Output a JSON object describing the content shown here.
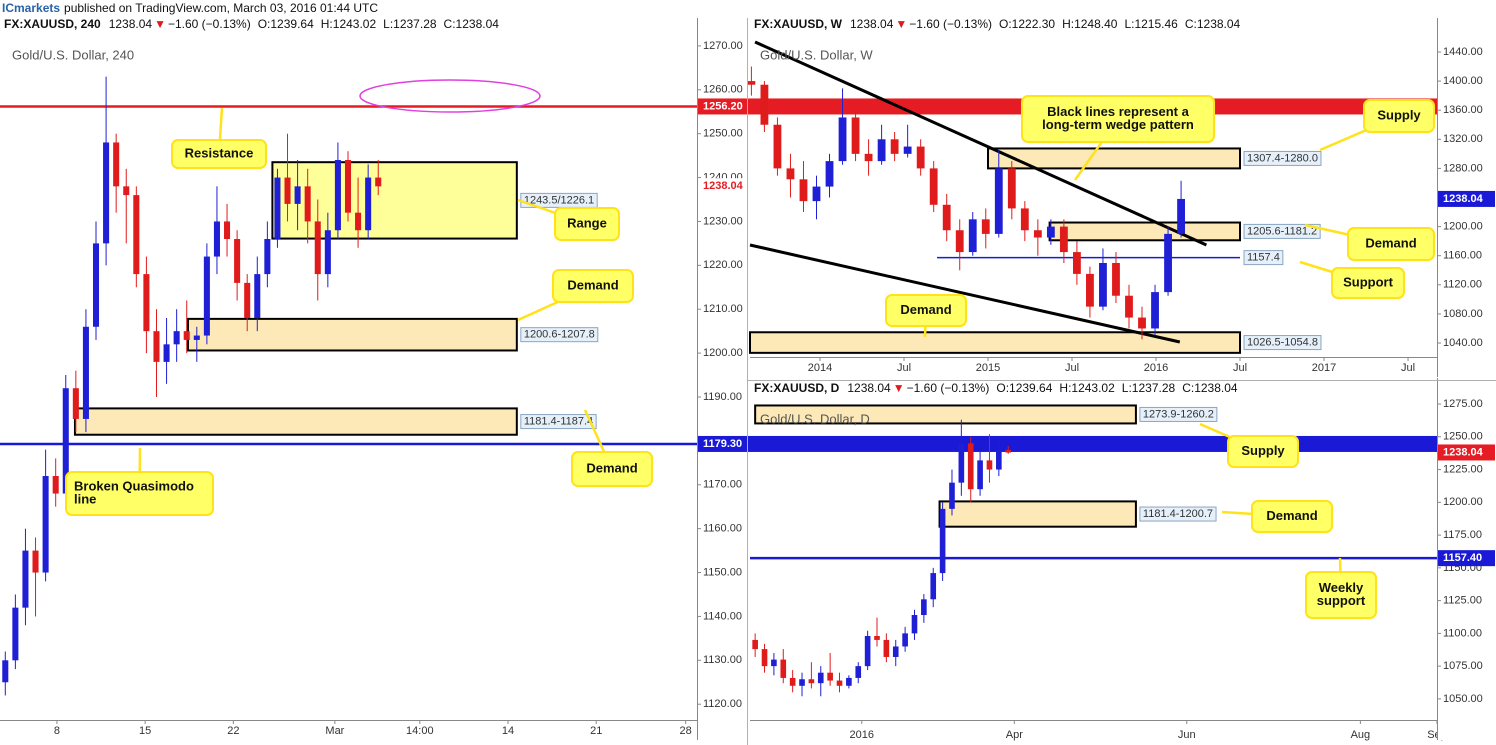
{
  "header": {
    "brand": "ICmarkets",
    "text": "published on TradingView.com, March 03, 2016 01:44 UTC"
  },
  "chart_data": [
    {
      "type": "candlestick",
      "symbol": "FX:XAUUSD, 240",
      "last": "1238.04",
      "change_arrow": "▼",
      "change": "−1.60 (−0.13%)",
      "ohlc": [
        "O:1239.64",
        "H:1243.02",
        "L:1237.28",
        "C:1238.04"
      ],
      "title": "Gold/U.S. Dollar, 240",
      "up_color": "#1f1fd6",
      "down_color": "#e01b1b",
      "xlim": [
        3.48,
        58.8
      ],
      "ylim": [
        1116.4,
        1271.8
      ],
      "xticks": [
        8,
        15,
        22,
        {
          "value": 30.06,
          "label": "Mar"
        },
        {
          "value": 36.8,
          "label": "14:00"
        },
        {
          "value": 43.8,
          "label": "14"
        },
        {
          "value": 50.8,
          "label": "21"
        },
        {
          "value": 57.9,
          "label": "28"
        }
      ],
      "yticks": [
        {
          "value": 1120,
          "label": "1120.00"
        },
        {
          "value": 1130,
          "label": "1130.00"
        },
        {
          "value": 1140,
          "label": "1140.00"
        },
        {
          "value": 1150,
          "label": "1150.00"
        },
        {
          "value": 1160,
          "label": "1160.00"
        },
        {
          "value": 1170,
          "label": "1170.00"
        },
        {
          "value": 1180,
          "label": "1180.00"
        },
        {
          "value": 1190,
          "label": "1190.00"
        },
        {
          "value": 1200,
          "label": "1200.00"
        },
        {
          "value": 1210,
          "label": "1210.00"
        },
        {
          "value": 1220,
          "label": "1220.00"
        },
        {
          "value": 1230,
          "label": "1230.00"
        },
        {
          "value": 1240,
          "label": "1240.00"
        },
        {
          "value": 1250,
          "label": "1250.00"
        },
        {
          "value": 1260,
          "label": "1260.00"
        },
        {
          "value": 1270,
          "label": "1270.00"
        }
      ],
      "x": [
        3.9,
        4.7,
        5.5,
        6.3,
        7.1,
        7.9,
        8.7,
        9.5,
        10.3,
        11.1,
        11.9,
        12.7,
        13.5,
        14.3,
        15.1,
        15.9,
        16.7,
        17.5,
        18.3,
        19.1,
        19.9,
        20.7,
        21.5,
        22.3,
        23.1,
        23.9,
        24.7,
        25.5,
        26.3,
        27.1,
        27.9,
        28.7,
        29.5,
        30.3,
        31.1,
        31.9,
        32.7,
        33.5
      ],
      "open": [
        1125,
        1130,
        1142,
        1155,
        1150,
        1172,
        1168,
        1192,
        1185,
        1206,
        1225,
        1248,
        1238,
        1236,
        1218,
        1205,
        1198,
        1202,
        1205,
        1203,
        1204,
        1222,
        1230,
        1226,
        1216,
        1208,
        1218,
        1226,
        1240,
        1234,
        1238,
        1230,
        1218,
        1228,
        1244,
        1232,
        1228,
        1240
      ],
      "high": [
        1132,
        1145,
        1160,
        1158,
        1178,
        1176,
        1195,
        1196,
        1210,
        1230,
        1263,
        1250,
        1242,
        1238,
        1222,
        1210,
        1208,
        1210,
        1212,
        1206,
        1225,
        1238,
        1234,
        1228,
        1218,
        1222,
        1230,
        1242,
        1250,
        1244,
        1242,
        1235,
        1232,
        1248,
        1246,
        1240,
        1243,
        1244
      ],
      "low": [
        1122,
        1128,
        1138,
        1140,
        1148,
        1165,
        1165,
        1182,
        1182,
        1203,
        1220,
        1232,
        1225,
        1215,
        1200,
        1190,
        1193,
        1198,
        1200,
        1198,
        1202,
        1218,
        1222,
        1212,
        1205,
        1205,
        1215,
        1224,
        1230,
        1228,
        1225,
        1212,
        1215,
        1226,
        1230,
        1224,
        1226,
        1236
      ],
      "close": [
        1130,
        1142,
        1155,
        1150,
        1172,
        1168,
        1192,
        1185,
        1206,
        1225,
        1248,
        1238,
        1236,
        1218,
        1205,
        1198,
        1202,
        1205,
        1203,
        1204,
        1222,
        1230,
        1226,
        1216,
        1208,
        1218,
        1226,
        1240,
        1234,
        1238,
        1230,
        1218,
        1228,
        1244,
        1232,
        1228,
        1240,
        1238
      ],
      "zones": [
        {
          "label": "1243.5/1226.1",
          "high": 1243.5,
          "low": 1226.1,
          "x0": 25.1,
          "x1": 44.5,
          "fill": "#ffff99"
        },
        {
          "label": "1200.6-1207.8",
          "low": 1200.6,
          "high": 1207.8,
          "x0": 18.4,
          "x1": 44.5,
          "fill": "#fde9b8"
        },
        {
          "label": "1181.4-1187.4",
          "low": 1181.4,
          "high": 1187.4,
          "x0": 9.43,
          "x1": 44.5,
          "fill": "#fde9b8"
        }
      ],
      "levels": [
        {
          "value": 1256.2,
          "label": "1256.20",
          "color": "#e51c23",
          "line": true,
          "flag": "filled"
        },
        {
          "value": 1238.04,
          "color": "#e51c23",
          "flag": "text"
        },
        {
          "value": 1179.3,
          "label": "1179.30",
          "color": "#1a1ad6",
          "line": true,
          "flag": "filled"
        }
      ],
      "callouts": [
        [
          "Resistance"
        ],
        [
          "Range"
        ],
        [
          "Demand"
        ],
        [
          "Broken Quasimodo",
          "line"
        ],
        [
          "Demand"
        ]
      ]
    },
    {
      "type": "candlestick",
      "symbol": "FX:XAUUSD, W",
      "last": "1238.04",
      "change_arrow": "▼",
      "change": "−1.60 (−0.13%)",
      "ohlc": [
        "O:1222.30",
        "H:1248.40",
        "L:1215.46",
        "C:1238.04"
      ],
      "title": "Gold/U.S. Dollar, W",
      "up_color": "#1f1fd6",
      "down_color": "#e01b1b",
      "xlim": [
        7,
        56.07
      ],
      "ylim": [
        1020.8,
        1459.2
      ],
      "xticks": [
        {
          "value": 12,
          "label": "2014"
        },
        {
          "value": 18,
          "label": "Jul"
        },
        {
          "value": 24,
          "label": "2015"
        },
        {
          "value": 30,
          "label": "Jul"
        },
        {
          "value": 36,
          "label": "2016"
        },
        {
          "value": 42,
          "label": "Jul"
        },
        {
          "value": 48,
          "label": "2017"
        },
        {
          "value": 54,
          "label": "Jul"
        }
      ],
      "yticks": [
        {
          "value": 1040,
          "label": "1040.00"
        },
        {
          "value": 1080,
          "label": "1080.00"
        },
        {
          "value": 1120,
          "label": "1120.00"
        },
        {
          "value": 1160,
          "label": "1160.00"
        },
        {
          "value": 1200,
          "label": "1200.00"
        },
        {
          "value": 1240,
          "label": "1240.00"
        },
        {
          "value": 1280,
          "label": "1280.00"
        },
        {
          "value": 1320,
          "label": "1320.00"
        },
        {
          "value": 1360,
          "label": "1360.00"
        },
        {
          "value": 1400,
          "label": "1400.00"
        },
        {
          "value": 1440,
          "label": "1440.00"
        }
      ],
      "x": [
        7.1,
        8.03,
        8.96,
        9.89,
        10.82,
        11.75,
        12.68,
        13.61,
        14.54,
        15.47,
        16.4,
        17.33,
        18.26,
        19.19,
        20.12,
        21.05,
        21.98,
        22.91,
        23.84,
        24.77,
        25.7,
        26.63,
        27.56,
        28.49,
        29.42,
        30.35,
        31.28,
        32.21,
        33.14,
        34.07,
        35.0,
        35.93,
        36.86,
        37.79
      ],
      "open": [
        1400,
        1395,
        1340,
        1280,
        1265,
        1235,
        1255,
        1290,
        1350,
        1300,
        1290,
        1320,
        1300,
        1310,
        1280,
        1230,
        1195,
        1165,
        1210,
        1190,
        1280,
        1225,
        1195,
        1185,
        1200,
        1165,
        1135,
        1090,
        1150,
        1105,
        1075,
        1060,
        1110,
        1190
      ],
      "high": [
        1420,
        1400,
        1350,
        1300,
        1290,
        1270,
        1300,
        1390,
        1360,
        1320,
        1340,
        1330,
        1340,
        1320,
        1290,
        1245,
        1210,
        1220,
        1225,
        1305,
        1290,
        1235,
        1210,
        1210,
        1210,
        1180,
        1145,
        1170,
        1165,
        1120,
        1090,
        1120,
        1200,
        1263
      ],
      "low": [
        1380,
        1330,
        1270,
        1240,
        1220,
        1210,
        1240,
        1285,
        1290,
        1270,
        1285,
        1290,
        1295,
        1270,
        1220,
        1180,
        1140,
        1160,
        1170,
        1185,
        1210,
        1180,
        1160,
        1175,
        1150,
        1120,
        1075,
        1085,
        1095,
        1060,
        1045,
        1050,
        1105,
        1185
      ],
      "close": [
        1395,
        1340,
        1280,
        1265,
        1235,
        1255,
        1290,
        1350,
        1300,
        1290,
        1320,
        1300,
        1310,
        1280,
        1230,
        1195,
        1165,
        1210,
        1190,
        1280,
        1225,
        1195,
        1185,
        1200,
        1165,
        1135,
        1090,
        1150,
        1105,
        1075,
        1060,
        1110,
        1190,
        1238
      ],
      "zones": [
        {
          "label": "1307.4-1280.0",
          "high": 1307.4,
          "low": 1280,
          "x0": 24,
          "x1": 42,
          "fill": "#fde9b8"
        },
        {
          "label": "1205.6-1181.2",
          "high": 1205.6,
          "low": 1181.2,
          "x0": 28.4,
          "x1": 42,
          "fill": "#fde9b8"
        },
        {
          "label": "1026.5-1054.8",
          "low": 1026.5,
          "high": 1054.8,
          "x0": 7,
          "x1": 42,
          "fill": "#fde9b8"
        }
      ],
      "levels": [
        {
          "value": 1238.04,
          "color": "#1a1ad6",
          "flag": "filled"
        },
        {
          "value": 1157.4,
          "color": "#1a1ad6",
          "line": true,
          "span": [
            20.36,
            42
          ],
          "tag": true
        }
      ],
      "trendlines": [
        {
          "x": [
            7.36,
            39.6
          ],
          "y": [
            1453.7,
            1174.7
          ],
          "color": "#000000"
        },
        {
          "x": [
            7,
            37.7
          ],
          "y": [
            1174.7,
            1041.4
          ],
          "color": "#000000"
        }
      ],
      "callouts": [
        [
          "Black lines represent a",
          "long-term wedge pattern"
        ],
        [
          "Supply"
        ],
        [
          "Demand"
        ],
        [
          "Support"
        ],
        [
          "Demand"
        ]
      ]
    },
    {
      "type": "candlestick",
      "symbol": "FX:XAUUSD, D",
      "last": "1238.04",
      "change_arrow": "▼",
      "change": "−1.60 (−0.13%)",
      "ohlc": [
        "O:1239.64",
        "H:1243.02",
        "L:1237.28",
        "C:1238.04"
      ],
      "title": "Gold/U.S. Dollar, D",
      "up_color": "#1f1fd6",
      "down_color": "#e01b1b",
      "xlim": [
        -47.7,
        245.5
      ],
      "ylim": [
        1033.9,
        1279.6
      ],
      "xticks": [
        {
          "value": 0,
          "label": "2016"
        },
        {
          "value": 65.1,
          "label": "Apr"
        },
        {
          "value": 138.7,
          "label": "Jun"
        },
        {
          "value": 212.8,
          "label": "Aug"
        },
        {
          "value": 245.5,
          "label": "Sep"
        }
      ],
      "yticks": [
        {
          "value": 1050,
          "label": "1050.00"
        },
        {
          "value": 1075,
          "label": "1075.00"
        },
        {
          "value": 1100,
          "label": "1100.00"
        },
        {
          "value": 1125,
          "label": "1125.00"
        },
        {
          "value": 1150,
          "label": "1150.00"
        },
        {
          "value": 1175,
          "label": "1175.00"
        },
        {
          "value": 1200,
          "label": "1200.00"
        },
        {
          "value": 1225,
          "label": "1225.00"
        },
        {
          "value": 1250,
          "label": "1250.00"
        },
        {
          "value": 1275,
          "label": "1275.00"
        }
      ],
      "x": [
        -45.5,
        -41.5,
        -37.5,
        -33.5,
        -29.5,
        -25.5,
        -21.5,
        -17.5,
        -13.5,
        -9.5,
        -5.5,
        -1.5,
        2.5,
        6.5,
        10.5,
        14.5,
        18.5,
        22.5,
        26.5,
        30.5,
        34.5,
        38.5,
        42.5,
        46.5,
        50.5,
        54.5,
        58.5,
        62.5
      ],
      "open": [
        1095,
        1088,
        1075,
        1080,
        1066,
        1060,
        1065,
        1062,
        1070,
        1064,
        1060,
        1066,
        1075,
        1098,
        1095,
        1082,
        1090,
        1100,
        1114,
        1126,
        1146,
        1195,
        1215,
        1245,
        1210,
        1232,
        1225,
        1240
      ],
      "high": [
        1100,
        1092,
        1085,
        1088,
        1072,
        1070,
        1078,
        1075,
        1085,
        1070,
        1068,
        1078,
        1102,
        1112,
        1100,
        1095,
        1105,
        1118,
        1130,
        1150,
        1200,
        1225,
        1263,
        1250,
        1240,
        1252,
        1248,
        1243
      ],
      "low": [
        1082,
        1070,
        1068,
        1062,
        1055,
        1052,
        1058,
        1052,
        1060,
        1055,
        1058,
        1062,
        1072,
        1090,
        1078,
        1075,
        1086,
        1095,
        1108,
        1120,
        1140,
        1190,
        1205,
        1200,
        1205,
        1215,
        1220,
        1237
      ],
      "close": [
        1088,
        1075,
        1080,
        1066,
        1060,
        1065,
        1062,
        1070,
        1064,
        1060,
        1066,
        1075,
        1098,
        1095,
        1082,
        1090,
        1100,
        1114,
        1126,
        1146,
        1195,
        1215,
        1245,
        1210,
        1232,
        1225,
        1240,
        1238
      ],
      "zones": [
        {
          "label": "1273.9-1260.2",
          "high": 1273.9,
          "low": 1260.2,
          "x0": -45.5,
          "x1": 117,
          "fill": "#fde9b8"
        },
        {
          "label": "1181.4-1200.7",
          "low": 1181.4,
          "high": 1200.7,
          "x0": 33.2,
          "x1": 117,
          "fill": "#fde9b8"
        }
      ],
      "levels": [
        {
          "value": 1238.04,
          "color": "#e51c23",
          "flag": "filled"
        },
        {
          "value": 1157.4,
          "label": "1157.40",
          "color": "#1a1ad6",
          "line": true,
          "flag": "filled"
        }
      ],
      "callouts": [
        [
          "Supply"
        ],
        [
          "Demand"
        ],
        [
          "Weekly",
          "support"
        ]
      ]
    }
  ]
}
